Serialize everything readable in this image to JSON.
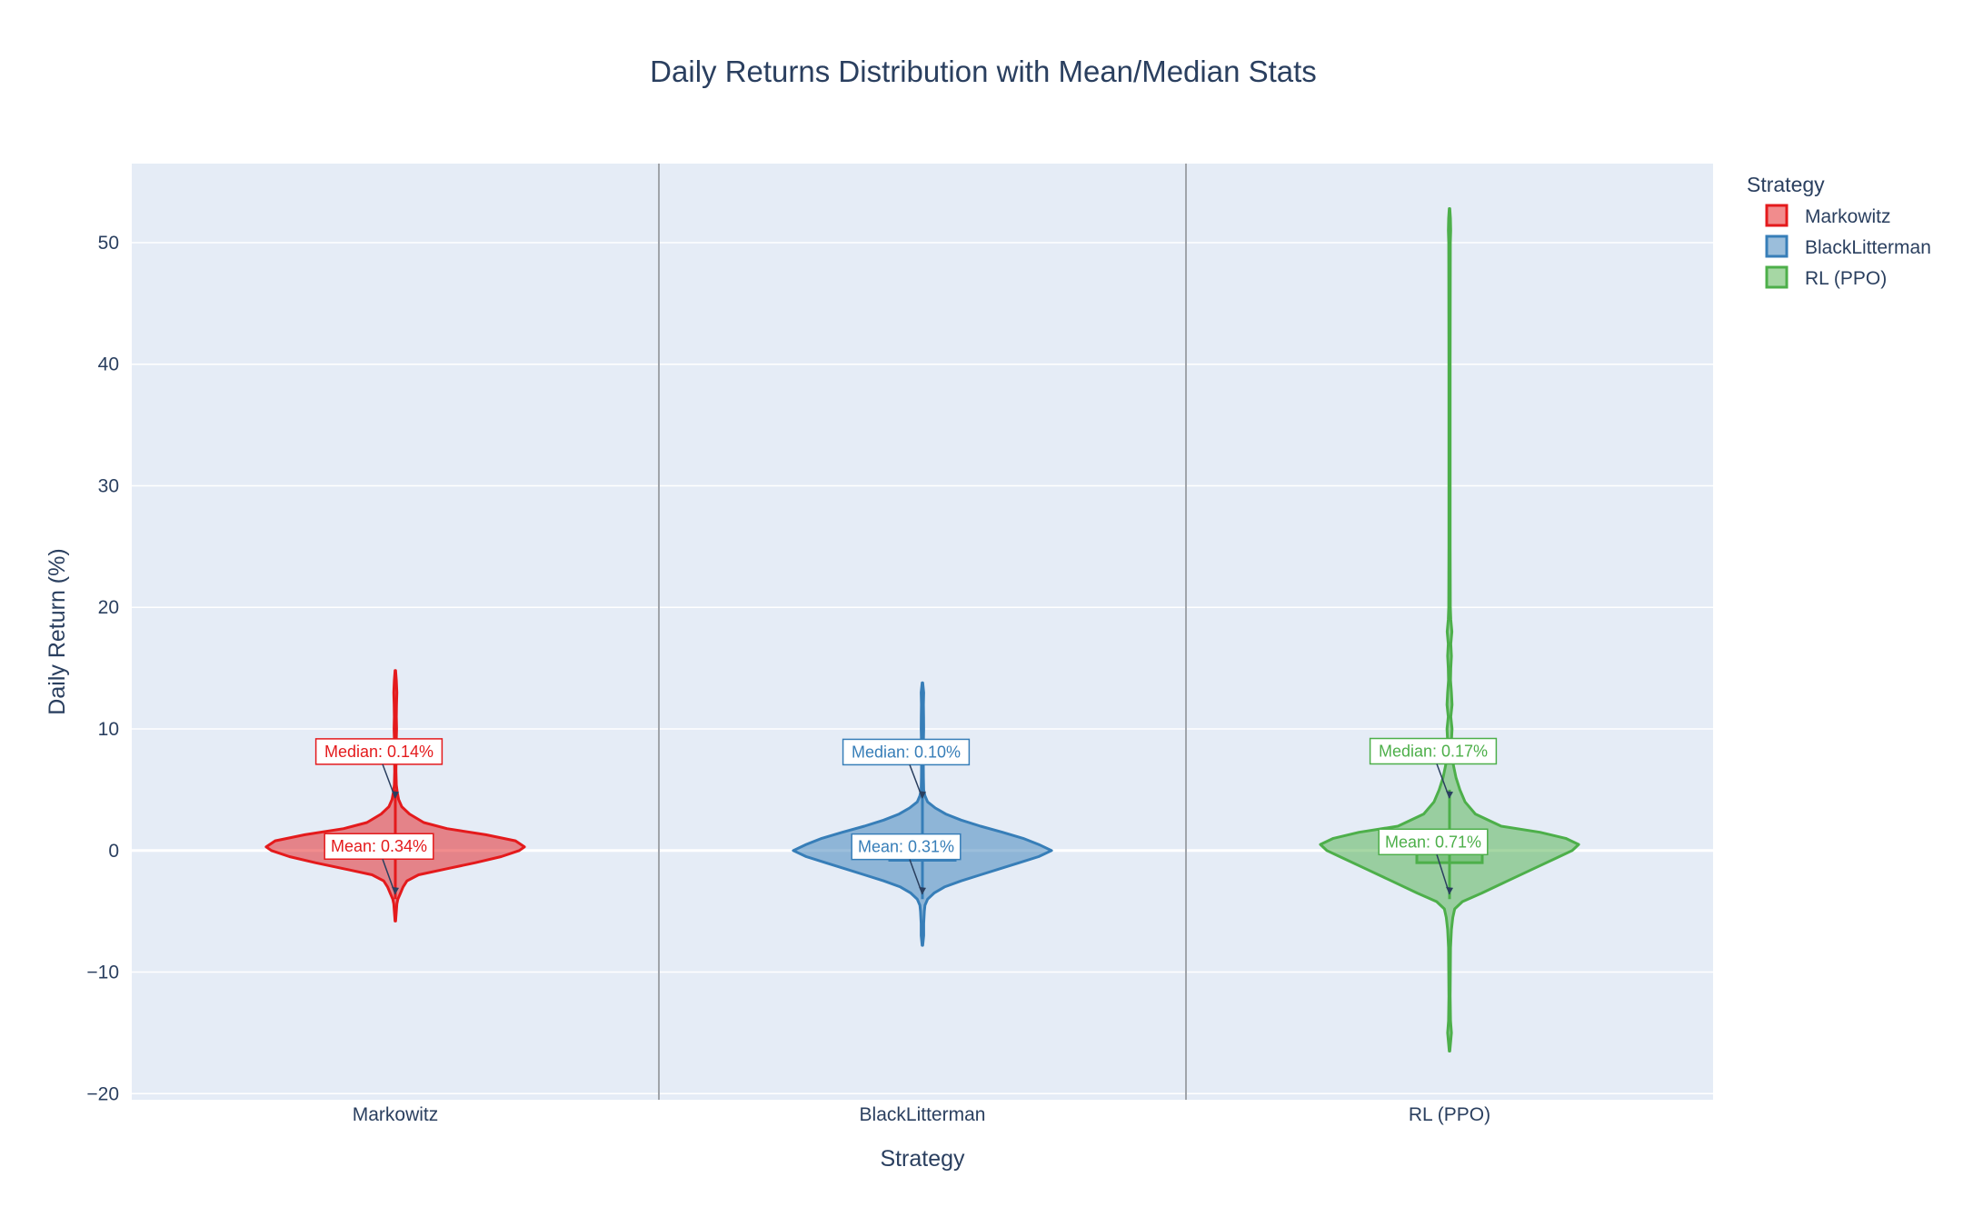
{
  "chart_data": {
    "type": "violin",
    "title": "Daily Returns Distribution with Mean/Median Stats",
    "xlabel": "Strategy",
    "ylabel": "Daily Return (%)",
    "categories": [
      "Markowitz",
      "BlackLitterman",
      "RL (PPO)"
    ],
    "ylim": [
      -20.5,
      56.5
    ],
    "yticks": [
      -20,
      -10,
      0,
      10,
      20,
      30,
      40,
      50
    ],
    "ytick_labels": [
      "−20",
      "−10",
      "0",
      "10",
      "20",
      "30",
      "40",
      "50"
    ],
    "grid": true,
    "legend": {
      "title": "Strategy",
      "placement": "top-right",
      "entries": [
        "Markowitz",
        "BlackLitterman",
        "RL (PPO)"
      ]
    },
    "series": [
      {
        "name": "Markowitz",
        "color": "#e41a1c",
        "min": -5.8,
        "max": 14.8,
        "q1": -0.6,
        "q3": 0.9,
        "median": 0.14,
        "mean": 0.34,
        "median_label": "Median: 0.14%",
        "mean_label": "Mean: 0.34%",
        "density": [
          [
            -5.8,
            0.2
          ],
          [
            -5,
            0.8
          ],
          [
            -4.4,
            1.2
          ],
          [
            -4,
            2
          ],
          [
            -3.5,
            4
          ],
          [
            -3,
            6
          ],
          [
            -2.5,
            9
          ],
          [
            -2,
            18
          ],
          [
            -1.5,
            40
          ],
          [
            -1,
            62
          ],
          [
            -0.5,
            82
          ],
          [
            0,
            96
          ],
          [
            0.3,
            100
          ],
          [
            0.8,
            93
          ],
          [
            1.3,
            70
          ],
          [
            1.8,
            40
          ],
          [
            2.3,
            22
          ],
          [
            3,
            11
          ],
          [
            3.6,
            5
          ],
          [
            4.2,
            2.5
          ],
          [
            4.8,
            1.5
          ],
          [
            5.4,
            0.8
          ],
          [
            6.5,
            0.5
          ],
          [
            8,
            0.6
          ],
          [
            9,
            0.7
          ],
          [
            10,
            1
          ],
          [
            11,
            0.8
          ],
          [
            12,
            0.9
          ],
          [
            13,
            1.2
          ],
          [
            14,
            0.8
          ],
          [
            14.8,
            0.2
          ]
        ]
      },
      {
        "name": "BlackLitterman",
        "color": "#377eb8",
        "min": -7.8,
        "max": 13.8,
        "q1": -0.8,
        "q3": 0.8,
        "median": 0.1,
        "mean": 0.31,
        "median_label": "Median: 0.10%",
        "mean_label": "Mean: 0.31%",
        "density": [
          [
            -7.8,
            0.2
          ],
          [
            -7,
            1
          ],
          [
            -6,
            1
          ],
          [
            -5,
            1.5
          ],
          [
            -4.5,
            2
          ],
          [
            -4,
            4
          ],
          [
            -3.5,
            9
          ],
          [
            -3,
            17
          ],
          [
            -2.5,
            30
          ],
          [
            -2,
            45
          ],
          [
            -1.5,
            60
          ],
          [
            -1,
            75
          ],
          [
            -0.5,
            90
          ],
          [
            0,
            100
          ],
          [
            0.5,
            90
          ],
          [
            1,
            78
          ],
          [
            1.5,
            62
          ],
          [
            2,
            45
          ],
          [
            2.5,
            30
          ],
          [
            3,
            18
          ],
          [
            3.5,
            10
          ],
          [
            4,
            4
          ],
          [
            4.5,
            2
          ],
          [
            5,
            1
          ],
          [
            6,
            0.8
          ],
          [
            7,
            0.7
          ],
          [
            8,
            0.6
          ],
          [
            9,
            0.8
          ],
          [
            10,
            1
          ],
          [
            11,
            0.9
          ],
          [
            12,
            0.8
          ],
          [
            13,
            1
          ],
          [
            13.8,
            0.2
          ]
        ]
      },
      {
        "name": "RL (PPO)",
        "color": "#4daf4a",
        "min": -16.5,
        "max": 52.8,
        "q1": -1.0,
        "q3": 1.0,
        "median": 0.17,
        "mean": 0.71,
        "median_label": "Median: 0.17%",
        "mean_label": "Mean: 0.71%",
        "density": [
          [
            -16.5,
            0.2
          ],
          [
            -15,
            1.5
          ],
          [
            -14,
            0.8
          ],
          [
            -12,
            0.5
          ],
          [
            -10,
            0.6
          ],
          [
            -8,
            0.8
          ],
          [
            -6.5,
            1.5
          ],
          [
            -5.5,
            2.5
          ],
          [
            -4.8,
            4
          ],
          [
            -4.2,
            10
          ],
          [
            -3.5,
            25
          ],
          [
            -2.5,
            45
          ],
          [
            -1.5,
            65
          ],
          [
            -0.5,
            85
          ],
          [
            0,
            95
          ],
          [
            0.5,
            100
          ],
          [
            1,
            90
          ],
          [
            1.5,
            70
          ],
          [
            2,
            40
          ],
          [
            3,
            20
          ],
          [
            4,
            12
          ],
          [
            5,
            8
          ],
          [
            6,
            5
          ],
          [
            7,
            3
          ],
          [
            8,
            2
          ],
          [
            9,
            1.5
          ],
          [
            10,
            2
          ],
          [
            11,
            1
          ],
          [
            12,
            2
          ],
          [
            13,
            1.5
          ],
          [
            14,
            0.8
          ],
          [
            15,
            1
          ],
          [
            16,
            1.5
          ],
          [
            17,
            1
          ],
          [
            18,
            1.8
          ],
          [
            19,
            1
          ],
          [
            20,
            0.6
          ],
          [
            25,
            0.5
          ],
          [
            30,
            0.5
          ],
          [
            40,
            0.5
          ],
          [
            50,
            0.6
          ],
          [
            51,
            0.9
          ],
          [
            52,
            0.7
          ],
          [
            52.8,
            0.2
          ]
        ]
      }
    ]
  }
}
